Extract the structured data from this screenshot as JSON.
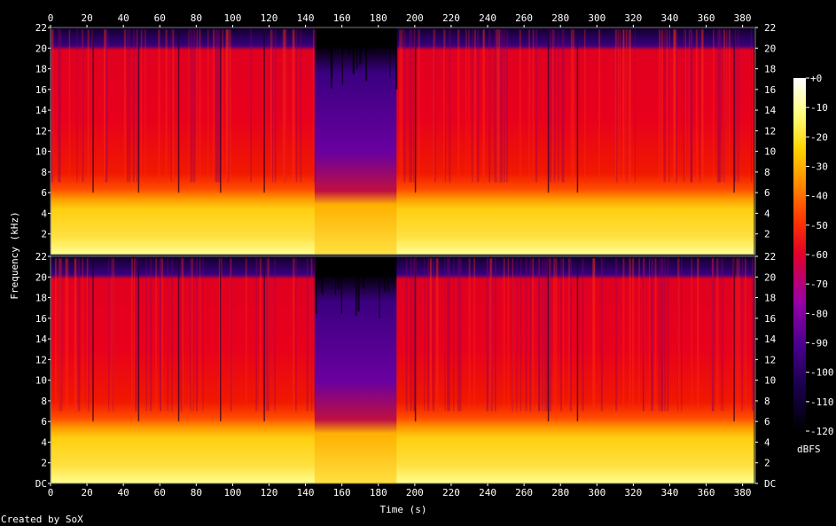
{
  "chart_data": {
    "type": "heatmap",
    "title": "",
    "xlabel": "Time (s)",
    "ylabel": "Frequency (kHz)",
    "colorbar_label": "dBFS",
    "footer": "Created by SoX",
    "xlim": [
      0,
      387
    ],
    "ylim_khz": [
      0,
      22
    ],
    "x_ticks": [
      0,
      20,
      40,
      60,
      80,
      100,
      120,
      140,
      160,
      180,
      200,
      220,
      240,
      260,
      280,
      300,
      320,
      340,
      360,
      380
    ],
    "y_ticks": [
      "DC",
      "2",
      "4",
      "6",
      "8",
      "10",
      "12",
      "14",
      "16",
      "18",
      "20",
      "22"
    ],
    "colorbar_range_db": [
      -120,
      0
    ],
    "colorbar_ticks": [
      "+0",
      "-10",
      "-20",
      "-30",
      "-40",
      "-50",
      "-60",
      "-70",
      "-80",
      "-90",
      "-100",
      "-110",
      "-120"
    ],
    "channels": 2,
    "cutoff_khz": 20.3,
    "quiet_segment_s": [
      145,
      190
    ],
    "signal_end_s": 387,
    "band_levels_db": [
      {
        "from_khz": 0,
        "to_khz": 5.5,
        "level_db": -18
      },
      {
        "from_khz": 5.5,
        "to_khz": 7,
        "level_db": -40
      },
      {
        "from_khz": 7,
        "to_khz": 20.3,
        "level_db": -58
      },
      {
        "from_khz": 20.3,
        "to_khz": 22,
        "level_db": -95
      }
    ],
    "colors": {
      "background": "#000000",
      "scale": [
        "#000000",
        "#18004a",
        "#4a0090",
        "#9b00a8",
        "#e0002a",
        "#ff3800",
        "#ff8a00",
        "#ffd400",
        "#ffff80",
        "#ffffff"
      ]
    }
  }
}
